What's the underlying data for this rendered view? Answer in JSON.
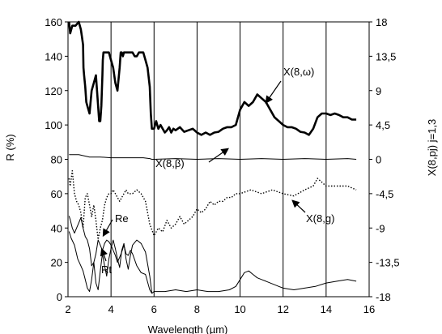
{
  "chart_data": {
    "type": "line",
    "xlabel": "Wavelength (µm)",
    "ylabel": "R (%)",
    "y2label": "X(8,pj)  j=1,3",
    "xlim": [
      2,
      16
    ],
    "ylim": [
      0,
      160
    ],
    "y2lim": [
      -18,
      18
    ],
    "x_ticks": [
      "2",
      "4",
      "6",
      "8",
      "10",
      "12",
      "14",
      "16"
    ],
    "y_ticks": [
      "0",
      "20",
      "40",
      "60",
      "80",
      "100",
      "120",
      "140",
      "160"
    ],
    "y2_ticks": [
      "-18",
      "-13,5",
      "-9",
      "-4,5",
      "0",
      "4,5",
      "9",
      "13,5",
      "18"
    ],
    "grid": "vertical",
    "annotations": [
      {
        "text": "X(8,ω)"
      },
      {
        "text": "X(8,β)"
      },
      {
        "text": "X(8,g)"
      },
      {
        "text": "Re"
      },
      {
        "text": "Rt"
      }
    ],
    "series": [
      {
        "name": "X(8,ω)",
        "axis": "right",
        "style": "thick",
        "x": [
          2.05,
          2.1,
          2.2,
          2.35,
          2.5,
          2.6,
          2.65,
          2.7,
          2.72,
          2.75,
          2.8,
          2.85,
          2.9,
          3.0,
          3.1,
          3.2,
          3.3,
          3.4,
          3.45,
          3.5,
          3.55,
          3.6,
          3.62,
          3.65,
          3.7,
          3.8,
          3.9,
          4.0,
          4.1,
          4.2,
          4.3,
          4.4,
          4.45,
          4.5,
          4.55,
          4.6,
          4.7,
          4.8,
          4.9,
          5.0,
          5.1,
          5.2,
          5.3,
          5.35,
          5.4,
          5.5,
          5.6,
          5.7,
          5.8,
          5.85,
          5.9,
          6.0,
          6.1,
          6.2,
          6.3,
          6.4,
          6.5,
          6.6,
          6.7,
          6.8,
          6.9,
          7.0,
          7.2,
          7.4,
          7.6,
          7.8,
          8.0,
          8.2,
          8.4,
          8.6,
          8.8,
          9.0,
          9.2,
          9.4,
          9.6,
          9.8,
          10.0,
          10.2,
          10.4,
          10.6,
          10.8,
          11.0,
          11.2,
          11.4,
          11.6,
          11.8,
          12.0,
          12.2,
          12.4,
          12.6,
          12.8,
          13.0,
          13.2,
          13.4,
          13.6,
          13.8,
          14.0,
          14.2,
          14.4,
          14.6,
          14.8,
          15.0,
          15.2,
          15.4
        ],
        "y": [
          18,
          16.5,
          17.5,
          17.5,
          18,
          17,
          16,
          15,
          12,
          11,
          9.5,
          7.5,
          7,
          6,
          9,
          10,
          11,
          7,
          5,
          5,
          7,
          11,
          13,
          14,
          14,
          14,
          14,
          13,
          12,
          10,
          9,
          12,
          14,
          14,
          13.5,
          14,
          14,
          14,
          14,
          14,
          13.5,
          13.5,
          14,
          14,
          14,
          14,
          13,
          12,
          9.5,
          6,
          4,
          4,
          5,
          4,
          4.5,
          4,
          3.5,
          3.8,
          4.2,
          3.5,
          4,
          3.8,
          4.2,
          3.6,
          3.8,
          4.0,
          3.5,
          3.2,
          3.5,
          3.2,
          3.5,
          3.6,
          4.0,
          4.2,
          4.2,
          4.5,
          6.5,
          7.5,
          7.0,
          7.5,
          8.5,
          8.0,
          7.5,
          6.5,
          5.5,
          5.0,
          4.5,
          4.2,
          4.2,
          4.0,
          3.6,
          3.5,
          3.2,
          4.0,
          5.5,
          6.0,
          6.0,
          5.8,
          6.0,
          5.8,
          5.5,
          5.5,
          5.2,
          5.2
        ]
      },
      {
        "name": "X(8,β)",
        "axis": "right",
        "style": "thin",
        "x": [
          2.05,
          2.5,
          3.0,
          3.5,
          4.0,
          4.5,
          5.0,
          5.5,
          5.8,
          5.9,
          6.0,
          7.0,
          8.0,
          9.0,
          10.0,
          11.0,
          12.0,
          13.0,
          14.0,
          15.0,
          15.4
        ],
        "y": [
          0.6,
          0.6,
          0.3,
          0.3,
          0.2,
          0.2,
          0.2,
          0.2,
          0.1,
          0,
          0,
          0.1,
          0,
          0.1,
          0,
          0.1,
          0,
          0.1,
          0,
          0.1,
          0
        ]
      },
      {
        "name": "X(8,g)",
        "axis": "right",
        "style": "dotted",
        "x": [
          2.05,
          2.1,
          2.2,
          2.3,
          2.4,
          2.5,
          2.6,
          2.7,
          2.8,
          2.9,
          3.0,
          3.1,
          3.2,
          3.3,
          3.4,
          3.5,
          3.6,
          3.7,
          3.8,
          3.9,
          4.0,
          4.1,
          4.2,
          4.3,
          4.4,
          4.5,
          4.6,
          4.7,
          4.8,
          4.9,
          5.0,
          5.2,
          5.4,
          5.6,
          5.8,
          6.0,
          6.2,
          6.4,
          6.6,
          6.8,
          7.0,
          7.2,
          7.4,
          7.6,
          7.8,
          8.0,
          8.2,
          8.4,
          8.6,
          8.8,
          9.0,
          9.2,
          9.4,
          9.6,
          9.8,
          10.0,
          10.5,
          11.0,
          11.5,
          12.0,
          12.5,
          13.0,
          13.4,
          13.6,
          14.0,
          14.5,
          15.0,
          15.4
        ],
        "y": [
          -2.5,
          -3.5,
          -1.5,
          -4.5,
          -5.5,
          -6,
          -7,
          -9,
          -5,
          -4.5,
          -6,
          -7.5,
          -6,
          -8,
          -10.5,
          -9,
          -8,
          -6,
          -5,
          -4.5,
          -4.5,
          -4,
          -4.5,
          -5,
          -5.5,
          -5,
          -4.5,
          -4,
          -4.5,
          -4.5,
          -4.5,
          -4,
          -4.5,
          -5.5,
          -8.5,
          -10,
          -9,
          -9.5,
          -8,
          -9,
          -8.5,
          -7.5,
          -8.5,
          -8,
          -7.5,
          -6.5,
          -7,
          -6.5,
          -5.5,
          -6,
          -5.5,
          -5.5,
          -5,
          -5,
          -4.5,
          -4.5,
          -4,
          -4.5,
          -4,
          -4.5,
          -4.8,
          -4,
          -3.5,
          -2.5,
          -3.5,
          -3.5,
          -3.5,
          -4
        ]
      },
      {
        "name": "Re",
        "axis": "left",
        "style": "thin",
        "x": [
          2.05,
          2.1,
          2.2,
          2.3,
          2.4,
          2.5,
          2.6,
          2.7,
          2.8,
          2.9,
          3.0,
          3.1,
          3.2,
          3.3,
          3.4,
          3.5,
          3.6,
          3.7,
          3.8,
          3.9,
          4.0,
          4.1,
          4.2,
          4.3,
          4.4,
          4.5,
          4.6,
          4.7,
          4.8,
          4.9,
          5.0,
          5.2,
          5.4,
          5.6,
          5.8,
          5.9
        ],
        "y": [
          47,
          45,
          40,
          37,
          40,
          43,
          46,
          40,
          35,
          33,
          28,
          18,
          20,
          25,
          33,
          30,
          27,
          31,
          33,
          32,
          30,
          27,
          24,
          20,
          23,
          26,
          30,
          25,
          24,
          27,
          25,
          18,
          14,
          13,
          4,
          2
        ]
      },
      {
        "name": "Rt",
        "axis": "left",
        "style": "thin",
        "x": [
          2.05,
          2.15,
          2.3,
          2.45,
          2.6,
          2.7,
          2.8,
          2.9,
          3.0,
          3.1,
          3.2,
          3.3,
          3.4,
          3.5,
          3.6,
          3.7,
          3.8,
          3.9,
          4.0,
          4.1,
          4.2,
          4.3,
          4.4,
          4.5,
          4.6,
          4.7,
          4.8,
          4.9,
          5.0,
          5.2,
          5.4,
          5.6,
          5.8,
          5.9,
          6.0,
          6.5,
          7.0,
          7.5,
          8.0,
          8.5,
          9.0,
          9.5,
          9.8,
          10.0,
          10.2,
          10.4,
          10.6,
          10.8,
          11.0,
          11.2,
          11.4,
          11.6,
          11.8,
          12.0,
          12.5,
          13.0,
          13.5,
          14.0,
          14.5,
          15.0,
          15.4
        ],
        "y": [
          38,
          34,
          30,
          22,
          18,
          15,
          10,
          5,
          3,
          10,
          20,
          8,
          4,
          15,
          25,
          18,
          12,
          22,
          28,
          33,
          28,
          22,
          17,
          27,
          31,
          22,
          16,
          24,
          30,
          33,
          31,
          26,
          12,
          2,
          3,
          3,
          4,
          3,
          4,
          3,
          3,
          4,
          6,
          10,
          14,
          15,
          13,
          11,
          10,
          9,
          8,
          7,
          6,
          5,
          4,
          5,
          6,
          8,
          9,
          10,
          9
        ]
      }
    ]
  }
}
